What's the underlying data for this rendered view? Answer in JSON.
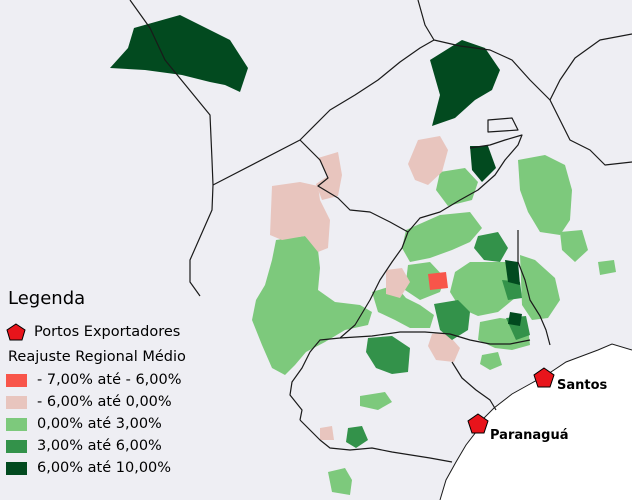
{
  "legend": {
    "title": "Legenda",
    "ports_label": "Portos Exportadores",
    "classes_title": "Reajuste Regional Médio",
    "classes": [
      {
        "label": "- 7,00% até - 6,00%",
        "color": "#f8554a"
      },
      {
        "label": "- 6,00% até 0,00%",
        "color": "#e8c5be"
      },
      {
        "label": "0,00% até 3,00%",
        "color": "#7dc97c"
      },
      {
        "label": "3,00% até 6,00%",
        "color": "#33924a"
      },
      {
        "label": "6,00% até 10,00%",
        "color": "#024a1f"
      }
    ]
  },
  "ports": [
    {
      "name": "Santos"
    },
    {
      "name": "Paranaguá"
    }
  ],
  "colors": {
    "background": "#eeeef3",
    "ocean": "#ffffff",
    "border": "#1a1a1a",
    "port_marker": "#e8141b"
  }
}
